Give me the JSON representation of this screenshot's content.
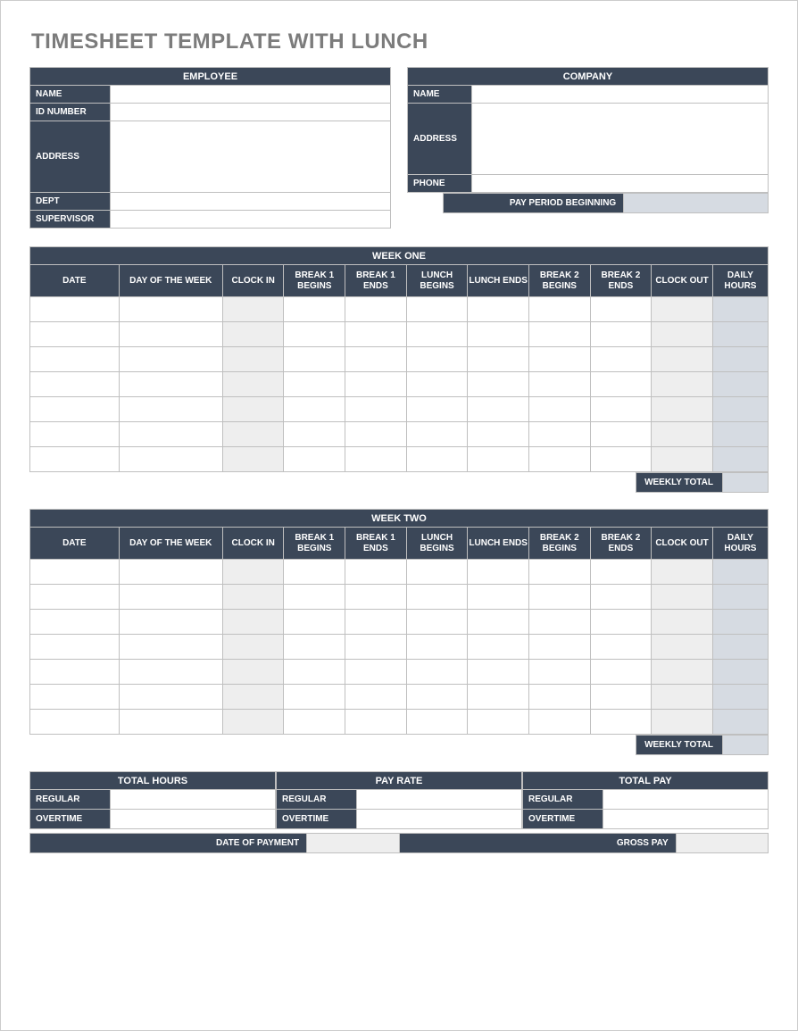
{
  "title": "TIMESHEET TEMPLATE WITH LUNCH",
  "colors": {
    "header_bg": "#3b4758",
    "header_fg": "#ffffff",
    "border": "#bfbfbf",
    "cell_bg": "#ffffff",
    "shade_light": "#eeeeee",
    "shade_blue": "#d6dbe2",
    "title_fg": "#7c7c7c"
  },
  "employee": {
    "header": "EMPLOYEE",
    "labels": {
      "name": "NAME",
      "id": "ID NUMBER",
      "address": "ADDRESS",
      "dept": "DEPT",
      "supervisor": "SUPERVISOR"
    },
    "values": {
      "name": "",
      "id": "",
      "address": "",
      "dept": "",
      "supervisor": ""
    }
  },
  "company": {
    "header": "COMPANY",
    "labels": {
      "name": "NAME",
      "address": "ADDRESS",
      "phone": "PHONE",
      "pay_period": "PAY PERIOD BEGINNING"
    },
    "values": {
      "name": "",
      "address": "",
      "phone": "",
      "pay_period": ""
    }
  },
  "week_columns": [
    "DATE",
    "DAY OF THE WEEK",
    "CLOCK IN",
    "BREAK 1 BEGINS",
    "BREAK 1 ENDS",
    "LUNCH BEGINS",
    "LUNCH ENDS",
    "BREAK 2 BEGINS",
    "BREAK 2 ENDS",
    "CLOCK OUT",
    "DAILY HOURS"
  ],
  "week1": {
    "title": "WEEK ONE",
    "rows": [
      {
        "date": "",
        "dow": "",
        "in": "",
        "b1b": "",
        "b1e": "",
        "lb": "",
        "le": "",
        "b2b": "",
        "b2e": "",
        "out": "",
        "daily": ""
      },
      {
        "date": "",
        "dow": "",
        "in": "",
        "b1b": "",
        "b1e": "",
        "lb": "",
        "le": "",
        "b2b": "",
        "b2e": "",
        "out": "",
        "daily": ""
      },
      {
        "date": "",
        "dow": "",
        "in": "",
        "b1b": "",
        "b1e": "",
        "lb": "",
        "le": "",
        "b2b": "",
        "b2e": "",
        "out": "",
        "daily": ""
      },
      {
        "date": "",
        "dow": "",
        "in": "",
        "b1b": "",
        "b1e": "",
        "lb": "",
        "le": "",
        "b2b": "",
        "b2e": "",
        "out": "",
        "daily": ""
      },
      {
        "date": "",
        "dow": "",
        "in": "",
        "b1b": "",
        "b1e": "",
        "lb": "",
        "le": "",
        "b2b": "",
        "b2e": "",
        "out": "",
        "daily": ""
      },
      {
        "date": "",
        "dow": "",
        "in": "",
        "b1b": "",
        "b1e": "",
        "lb": "",
        "le": "",
        "b2b": "",
        "b2e": "",
        "out": "",
        "daily": ""
      },
      {
        "date": "",
        "dow": "",
        "in": "",
        "b1b": "",
        "b1e": "",
        "lb": "",
        "le": "",
        "b2b": "",
        "b2e": "",
        "out": "",
        "daily": ""
      }
    ],
    "weekly_total_label": "WEEKLY TOTAL",
    "weekly_total": ""
  },
  "week2": {
    "title": "WEEK TWO",
    "rows": [
      {
        "date": "",
        "dow": "",
        "in": "",
        "b1b": "",
        "b1e": "",
        "lb": "",
        "le": "",
        "b2b": "",
        "b2e": "",
        "out": "",
        "daily": ""
      },
      {
        "date": "",
        "dow": "",
        "in": "",
        "b1b": "",
        "b1e": "",
        "lb": "",
        "le": "",
        "b2b": "",
        "b2e": "",
        "out": "",
        "daily": ""
      },
      {
        "date": "",
        "dow": "",
        "in": "",
        "b1b": "",
        "b1e": "",
        "lb": "",
        "le": "",
        "b2b": "",
        "b2e": "",
        "out": "",
        "daily": ""
      },
      {
        "date": "",
        "dow": "",
        "in": "",
        "b1b": "",
        "b1e": "",
        "lb": "",
        "le": "",
        "b2b": "",
        "b2e": "",
        "out": "",
        "daily": ""
      },
      {
        "date": "",
        "dow": "",
        "in": "",
        "b1b": "",
        "b1e": "",
        "lb": "",
        "le": "",
        "b2b": "",
        "b2e": "",
        "out": "",
        "daily": ""
      },
      {
        "date": "",
        "dow": "",
        "in": "",
        "b1b": "",
        "b1e": "",
        "lb": "",
        "le": "",
        "b2b": "",
        "b2e": "",
        "out": "",
        "daily": ""
      },
      {
        "date": "",
        "dow": "",
        "in": "",
        "b1b": "",
        "b1e": "",
        "lb": "",
        "le": "",
        "b2b": "",
        "b2e": "",
        "out": "",
        "daily": ""
      }
    ],
    "weekly_total_label": "WEEKLY TOTAL",
    "weekly_total": ""
  },
  "summary": {
    "hours": {
      "title": "TOTAL HOURS",
      "regular_label": "REGULAR",
      "overtime_label": "OVERTIME",
      "regular": "",
      "overtime": ""
    },
    "rate": {
      "title": "PAY RATE",
      "regular_label": "REGULAR",
      "overtime_label": "OVERTIME",
      "regular": "",
      "overtime": ""
    },
    "pay": {
      "title": "TOTAL PAY",
      "regular_label": "REGULAR",
      "overtime_label": "OVERTIME",
      "regular": "",
      "overtime": ""
    },
    "bottom": {
      "date_label": "DATE OF PAYMENT",
      "date": "",
      "gross_label": "GROSS PAY",
      "gross": ""
    }
  }
}
